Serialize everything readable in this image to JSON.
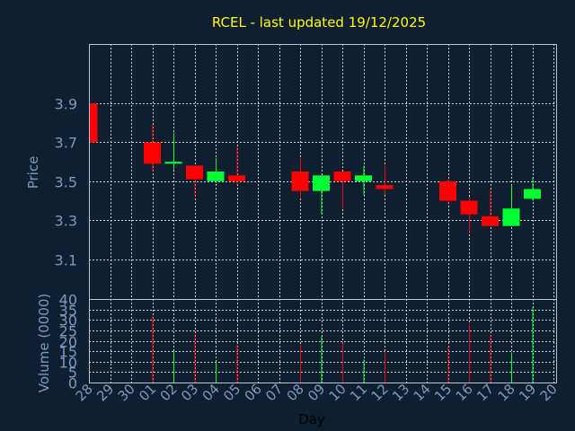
{
  "chart_data": {
    "type": "candlestick",
    "title": "RCEL - last updated 19/12/2025",
    "ylabel": "Price",
    "volume_label": "Volume (0000)",
    "xlabel": "Day",
    "x_tick_labels": [
      "28",
      "29",
      "30",
      "01",
      "02",
      "03",
      "04",
      "05",
      "06",
      "07",
      "08",
      "09",
      "10",
      "11",
      "12",
      "13",
      "14",
      "15",
      "16",
      "17",
      "18",
      "19",
      "20"
    ],
    "price_ticks": [
      "3.9",
      "3.7",
      "3.5",
      "3.3",
      "3.1"
    ],
    "volume_ticks": [
      "40",
      "35",
      "30",
      "25",
      "20",
      "15",
      "10",
      "5",
      "0"
    ],
    "price_ylim": [
      2.895,
      4.205
    ],
    "volume_ylim": [
      0,
      40
    ],
    "colors": {
      "up": "#00ff33",
      "down": "#ff0000",
      "title": "#ffff00",
      "axis_text": "#7b9ac0",
      "grid": "#ffffff",
      "background": "#0f1f30"
    },
    "candles": [
      {
        "day": "28",
        "open": 3.9,
        "high": 3.9,
        "low": 3.7,
        "close": 3.7,
        "volume": 0
      },
      {
        "day": "01",
        "open": 3.7,
        "high": 3.79,
        "low": 3.55,
        "close": 3.59,
        "volume": 32
      },
      {
        "day": "02",
        "open": 3.59,
        "high": 3.75,
        "low": 3.56,
        "close": 3.6,
        "volume": 15
      },
      {
        "day": "03",
        "open": 3.58,
        "high": 3.58,
        "low": 3.42,
        "close": 3.51,
        "volume": 23
      },
      {
        "day": "04",
        "open": 3.5,
        "high": 3.62,
        "low": 3.49,
        "close": 3.55,
        "volume": 10
      },
      {
        "day": "05",
        "open": 3.53,
        "high": 3.68,
        "low": 3.48,
        "close": 3.5,
        "volume": 18
      },
      {
        "day": "08",
        "open": 3.55,
        "high": 3.62,
        "low": 3.41,
        "close": 3.45,
        "volume": 18
      },
      {
        "day": "09",
        "open": 3.45,
        "high": 3.53,
        "low": 3.33,
        "close": 3.53,
        "volume": 22
      },
      {
        "day": "10",
        "open": 3.55,
        "high": 3.55,
        "low": 3.36,
        "close": 3.5,
        "volume": 19
      },
      {
        "day": "11",
        "open": 3.5,
        "high": 3.58,
        "low": 3.43,
        "close": 3.53,
        "volume": 11
      },
      {
        "day": "12",
        "open": 3.48,
        "high": 3.58,
        "low": 3.43,
        "close": 3.46,
        "volume": 15
      },
      {
        "day": "15",
        "open": 3.5,
        "high": 3.51,
        "low": 3.38,
        "close": 3.4,
        "volume": 17
      },
      {
        "day": "16",
        "open": 3.4,
        "high": 3.42,
        "low": 3.24,
        "close": 3.33,
        "volume": 28
      },
      {
        "day": "17",
        "open": 3.32,
        "high": 3.46,
        "low": 3.27,
        "close": 3.27,
        "volume": 23
      },
      {
        "day": "18",
        "open": 3.27,
        "high": 3.48,
        "low": 3.27,
        "close": 3.36,
        "volume": 14
      },
      {
        "day": "19",
        "open": 3.41,
        "high": 3.52,
        "low": 3.4,
        "close": 3.46,
        "volume": 36
      }
    ]
  }
}
